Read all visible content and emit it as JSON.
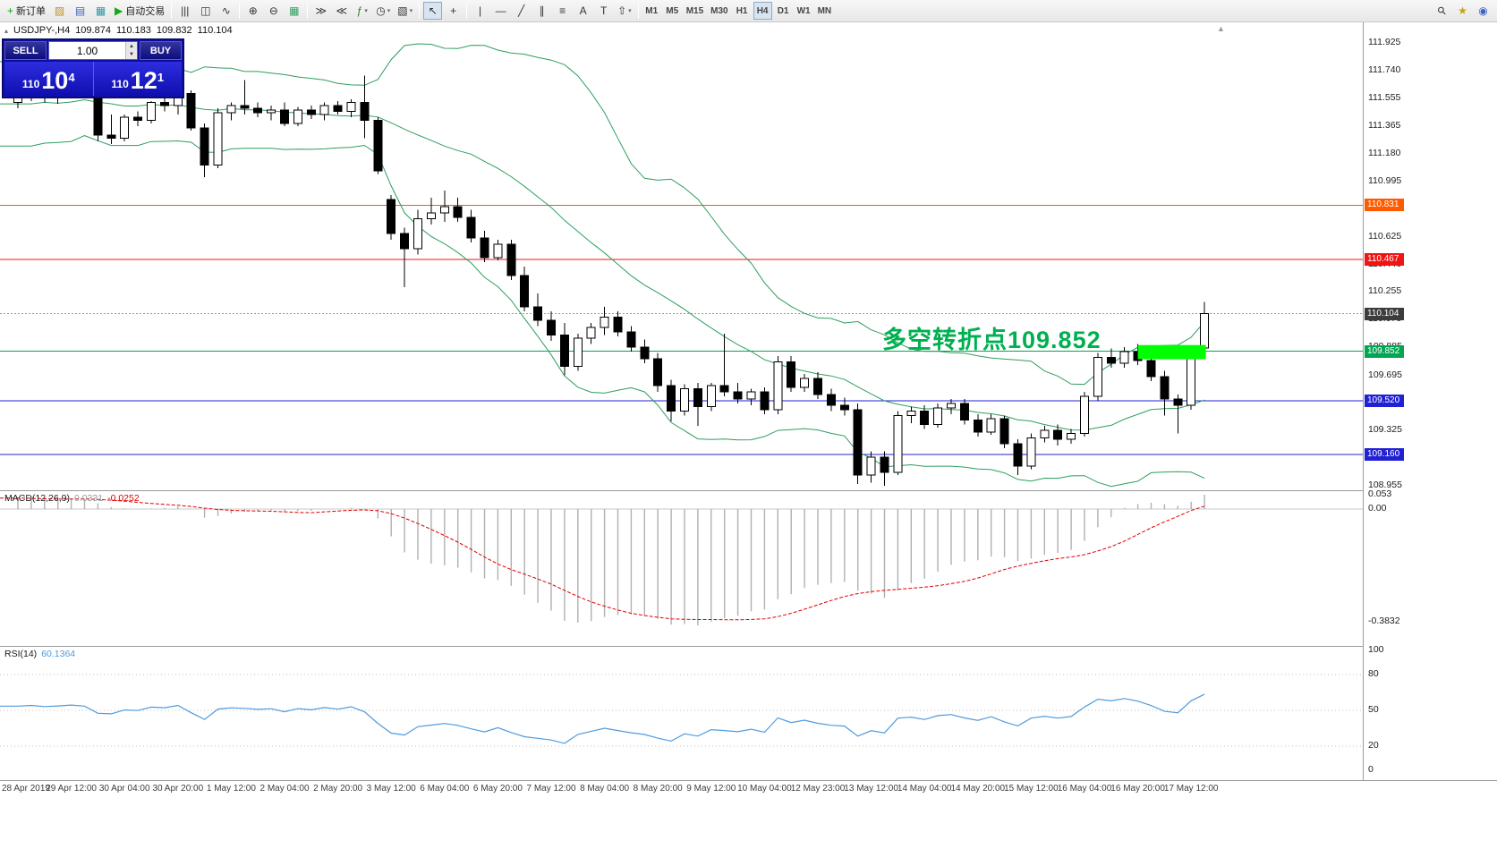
{
  "icons": {
    "one_click_toggle": "▴",
    "scroll_marker": "▲",
    "spin_up": "▲",
    "spin_down": "▼"
  },
  "toolbar": {
    "groups": [
      {
        "items": [
          {
            "id": "new-order",
            "glyph": "+",
            "glyph_color": "#18a018",
            "label": "新订单"
          },
          {
            "id": "charts",
            "glyph": "▨",
            "glyph_color": "#c89020"
          },
          {
            "id": "market-watch",
            "glyph": "▤",
            "glyph_color": "#3a64c8"
          },
          {
            "id": "navigator",
            "glyph": "▦",
            "glyph_color": "#2898a8"
          },
          {
            "id": "autotrading",
            "glyph": "▶",
            "glyph_color": "#18a818",
            "label": "自动交易"
          }
        ]
      },
      {
        "items": [
          {
            "id": "bar-chart",
            "glyph": "|||"
          },
          {
            "id": "candlestick-chart",
            "glyph": "◫"
          },
          {
            "id": "line-chart",
            "glyph": "∿"
          }
        ]
      },
      {
        "items": [
          {
            "id": "zoom-in",
            "glyph": "⊕"
          },
          {
            "id": "zoom-out",
            "glyph": "⊖"
          },
          {
            "id": "grid",
            "glyph": "▦",
            "glyph_color": "#2f9e5e"
          }
        ]
      },
      {
        "items": [
          {
            "id": "auto-scroll",
            "glyph": "≫"
          },
          {
            "id": "chart-shift",
            "glyph": "≪"
          },
          {
            "id": "indicators",
            "glyph": "ƒ",
            "glyph_color": "#1a8a1a",
            "dropdown": true
          },
          {
            "id": "periods",
            "glyph": "◷",
            "dropdown": true
          },
          {
            "id": "templates",
            "glyph": "▧",
            "dropdown": true
          }
        ]
      },
      {
        "items": [
          {
            "id": "cursor",
            "glyph": "↖",
            "active": true
          },
          {
            "id": "crosshair",
            "glyph": "+"
          }
        ]
      },
      {
        "items": [
          {
            "id": "vertical-line",
            "glyph": "|"
          },
          {
            "id": "horizontal-line",
            "glyph": "—"
          },
          {
            "id": "trendline",
            "glyph": "╱"
          },
          {
            "id": "channel",
            "glyph": "∥"
          },
          {
            "id": "fibonacci",
            "glyph": "≡"
          },
          {
            "id": "text",
            "glyph": "A"
          },
          {
            "id": "text-label",
            "glyph": "T"
          },
          {
            "id": "arrows",
            "glyph": "⇧",
            "dropdown": true
          }
        ]
      },
      {
        "items": [
          {
            "id": "tf-m1",
            "text": "M1"
          },
          {
            "id": "tf-m5",
            "text": "M5"
          },
          {
            "id": "tf-m15",
            "text": "M15"
          },
          {
            "id": "tf-m30",
            "text": "M30"
          },
          {
            "id": "tf-h1",
            "text": "H1"
          },
          {
            "id": "tf-h4",
            "text": "H4",
            "active": true
          },
          {
            "id": "tf-d1",
            "text": "D1"
          },
          {
            "id": "tf-w1",
            "text": "W1"
          },
          {
            "id": "tf-mn",
            "text": "MN"
          }
        ]
      },
      {
        "align": "right",
        "items": [
          {
            "id": "search",
            "glyph": "⚲",
            "rotate": -45
          },
          {
            "id": "favorites",
            "glyph": "★",
            "glyph_color": "#c8a020"
          },
          {
            "id": "community",
            "glyph": "◉",
            "glyph_color": "#3a64c8"
          }
        ]
      }
    ]
  },
  "symbol_bar": {
    "symbol": "USDJPY-,H4",
    "open": "109.874",
    "high": "110.183",
    "low": "109.832",
    "close": "110.104"
  },
  "trade_panel": {
    "sell_label": "SELL",
    "buy_label": "BUY",
    "volume": "1.00",
    "sell_price": {
      "prefix": "110",
      "big": "10",
      "sup": "4"
    },
    "buy_price": {
      "prefix": "110",
      "big": "12",
      "sup": "1"
    }
  },
  "annotation": {
    "text": "多空转折点109.852",
    "color": "#00b050"
  },
  "hlines": [
    {
      "price": 110.831,
      "label": "110.831",
      "color": "#ff5a00"
    },
    {
      "price": 110.467,
      "label": "110.467",
      "color": "#f01414"
    },
    {
      "price": 109.852,
      "label": "109.852",
      "color": "#00a651"
    },
    {
      "price": 109.52,
      "label": "109.520",
      "color": "#2121d4"
    },
    {
      "price": 109.16,
      "label": "109.160",
      "color": "#2121d4"
    }
  ],
  "current_price": {
    "value": 110.104,
    "label": "110.104",
    "line_color": "#9a9a9a",
    "tag_color": "#3c3c3c"
  },
  "highlight_rect": {
    "from_index": 84,
    "to_index": 89.1,
    "top_price": 109.893,
    "bottom_price": 109.798,
    "color": "#00ff00"
  },
  "bollinger": {
    "period": 20,
    "deviation": 2,
    "color": "#2E9E5E"
  },
  "macd": {
    "title": "MACD(12,26,9)",
    "value": "0.0331",
    "signal": "-0.0252",
    "ticks": [
      "0.053",
      "0.00",
      "-0.3832"
    ],
    "histogram_color": "#b0b0b0",
    "signal_color": "#e00000"
  },
  "rsi": {
    "title": "RSI(14)",
    "value": "60.1364",
    "ticks": [
      100,
      80,
      50,
      20,
      0
    ],
    "levels": [
      80,
      50,
      20
    ],
    "line_color": "#4E9BDF"
  },
  "chart_data": {
    "type": "candlestick",
    "symbol": "USDJPY",
    "timeframe": "H4",
    "ohlc_display": {
      "open": "109.874",
      "high": "110.183",
      "low": "109.832",
      "close": "110.104"
    },
    "y_ticks": [
      "111.925",
      "111.740",
      "111.555",
      "111.365",
      "111.180",
      "110.995",
      "110.810",
      "110.625",
      "110.440",
      "110.255",
      "110.070",
      "109.885",
      "109.695",
      "109.510",
      "109.325",
      "109.140",
      "108.955"
    ],
    "x_labels": [
      "28 Apr 2019",
      "29 Apr 12:00",
      "30 Apr 04:00",
      "30 Apr 20:00",
      "1 May 12:00",
      "2 May 04:00",
      "2 May 20:00",
      "3 May 12:00",
      "6 May 04:00",
      "6 May 20:00",
      "7 May 12:00",
      "8 May 04:00",
      "8 May 20:00",
      "9 May 12:00",
      "10 May 04:00",
      "12 May 23:00",
      "13 May 12:00",
      "14 May 04:00",
      "14 May 20:00",
      "15 May 12:00",
      "16 May 04:00",
      "16 May 20:00",
      "17 May 12:00"
    ],
    "indicators": [
      {
        "name": "Bollinger Bands",
        "period": 20,
        "deviation": 2
      },
      {
        "name": "MACD",
        "params": "12,26,9",
        "value": 0.0331,
        "signal": -0.0252
      },
      {
        "name": "RSI",
        "period": 14,
        "value": 60.1364
      }
    ],
    "candles": [
      [
        111.52,
        111.58,
        111.48,
        111.56
      ],
      [
        111.56,
        111.62,
        111.53,
        111.6
      ],
      [
        111.6,
        111.63,
        111.52,
        111.55
      ],
      [
        111.55,
        111.6,
        111.51,
        111.58
      ],
      [
        111.58,
        111.64,
        111.55,
        111.62
      ],
      [
        111.62,
        111.66,
        111.55,
        111.58
      ],
      [
        111.58,
        111.6,
        111.26,
        111.3
      ],
      [
        111.3,
        111.44,
        111.24,
        111.28
      ],
      [
        111.28,
        111.44,
        111.26,
        111.42
      ],
      [
        111.42,
        111.46,
        111.36,
        111.4
      ],
      [
        111.4,
        111.53,
        111.38,
        111.52
      ],
      [
        111.52,
        111.56,
        111.46,
        111.5
      ],
      [
        111.5,
        111.62,
        111.44,
        111.58
      ],
      [
        111.58,
        111.6,
        111.33,
        111.35
      ],
      [
        111.35,
        111.38,
        111.02,
        111.1
      ],
      [
        111.1,
        111.48,
        111.08,
        111.45
      ],
      [
        111.45,
        111.52,
        111.4,
        111.5
      ],
      [
        111.5,
        111.67,
        111.44,
        111.48
      ],
      [
        111.48,
        111.52,
        111.42,
        111.45
      ],
      [
        111.45,
        111.5,
        111.4,
        111.47
      ],
      [
        111.47,
        111.52,
        111.36,
        111.38
      ],
      [
        111.38,
        111.49,
        111.36,
        111.47
      ],
      [
        111.47,
        111.5,
        111.41,
        111.44
      ],
      [
        111.44,
        111.52,
        111.4,
        111.5
      ],
      [
        111.5,
        111.53,
        111.44,
        111.46
      ],
      [
        111.46,
        111.54,
        111.42,
        111.52
      ],
      [
        111.52,
        111.7,
        111.28,
        111.4
      ],
      [
        111.4,
        111.42,
        111.04,
        111.06
      ],
      [
        110.87,
        110.9,
        110.6,
        110.64
      ],
      [
        110.64,
        110.68,
        110.28,
        110.54
      ],
      [
        110.54,
        110.8,
        110.5,
        110.74
      ],
      [
        110.74,
        110.88,
        110.7,
        110.78
      ],
      [
        110.78,
        110.93,
        110.72,
        110.82
      ],
      [
        110.82,
        110.88,
        110.72,
        110.75
      ],
      [
        110.75,
        110.8,
        110.58,
        110.61
      ],
      [
        110.61,
        110.66,
        110.45,
        110.48
      ],
      [
        110.48,
        110.6,
        110.46,
        110.57
      ],
      [
        110.57,
        110.6,
        110.33,
        110.36
      ],
      [
        110.36,
        110.42,
        110.12,
        110.15
      ],
      [
        110.15,
        110.24,
        110.02,
        110.06
      ],
      [
        110.06,
        110.12,
        109.92,
        109.96
      ],
      [
        109.96,
        110.04,
        109.69,
        109.75
      ],
      [
        109.75,
        109.97,
        109.72,
        109.94
      ],
      [
        109.94,
        110.04,
        109.9,
        110.01
      ],
      [
        110.01,
        110.15,
        109.96,
        110.08
      ],
      [
        110.08,
        110.12,
        109.95,
        109.98
      ],
      [
        109.98,
        110.02,
        109.85,
        109.88
      ],
      [
        109.88,
        109.93,
        109.77,
        109.8
      ],
      [
        109.8,
        109.84,
        109.58,
        109.62
      ],
      [
        109.62,
        109.66,
        109.38,
        109.45
      ],
      [
        109.45,
        109.63,
        109.42,
        109.6
      ],
      [
        109.6,
        109.64,
        109.35,
        109.48
      ],
      [
        109.48,
        109.64,
        109.45,
        109.62
      ],
      [
        109.62,
        109.97,
        109.55,
        109.58
      ],
      [
        109.58,
        109.64,
        109.5,
        109.53
      ],
      [
        109.53,
        109.6,
        109.49,
        109.58
      ],
      [
        109.58,
        109.61,
        109.43,
        109.46
      ],
      [
        109.46,
        109.82,
        109.43,
        109.78
      ],
      [
        109.78,
        109.82,
        109.58,
        109.61
      ],
      [
        109.61,
        109.7,
        109.58,
        109.67
      ],
      [
        109.67,
        109.71,
        109.53,
        109.56
      ],
      [
        109.56,
        109.6,
        109.45,
        109.49
      ],
      [
        109.49,
        109.54,
        109.42,
        109.46
      ],
      [
        109.46,
        109.5,
        108.96,
        109.02
      ],
      [
        109.02,
        109.18,
        108.97,
        109.14
      ],
      [
        109.14,
        109.18,
        108.95,
        109.04
      ],
      [
        109.04,
        109.45,
        109.02,
        109.42
      ],
      [
        109.42,
        109.48,
        109.37,
        109.45
      ],
      [
        109.45,
        109.49,
        109.33,
        109.36
      ],
      [
        109.36,
        109.5,
        109.34,
        109.47
      ],
      [
        109.47,
        109.53,
        109.43,
        109.5
      ],
      [
        109.5,
        109.53,
        109.36,
        109.39
      ],
      [
        109.39,
        109.43,
        109.28,
        109.31
      ],
      [
        109.31,
        109.43,
        109.29,
        109.4
      ],
      [
        109.4,
        109.42,
        109.2,
        109.23
      ],
      [
        109.23,
        109.26,
        109.02,
        109.08
      ],
      [
        109.08,
        109.3,
        109.06,
        109.27
      ],
      [
        109.27,
        109.35,
        109.24,
        109.32
      ],
      [
        109.32,
        109.36,
        109.22,
        109.26
      ],
      [
        109.26,
        109.33,
        109.23,
        109.3
      ],
      [
        109.3,
        109.58,
        109.28,
        109.55
      ],
      [
        109.55,
        109.84,
        109.52,
        109.81
      ],
      [
        109.81,
        109.87,
        109.74,
        109.77
      ],
      [
        109.77,
        109.88,
        109.74,
        109.85
      ],
      [
        109.85,
        109.9,
        109.76,
        109.79
      ],
      [
        109.79,
        109.83,
        109.65,
        109.68
      ],
      [
        109.68,
        109.72,
        109.42,
        109.53
      ],
      [
        109.53,
        109.56,
        109.3,
        109.49
      ],
      [
        109.49,
        109.88,
        109.46,
        109.85
      ],
      [
        109.874,
        110.183,
        109.832,
        110.104
      ]
    ]
  }
}
